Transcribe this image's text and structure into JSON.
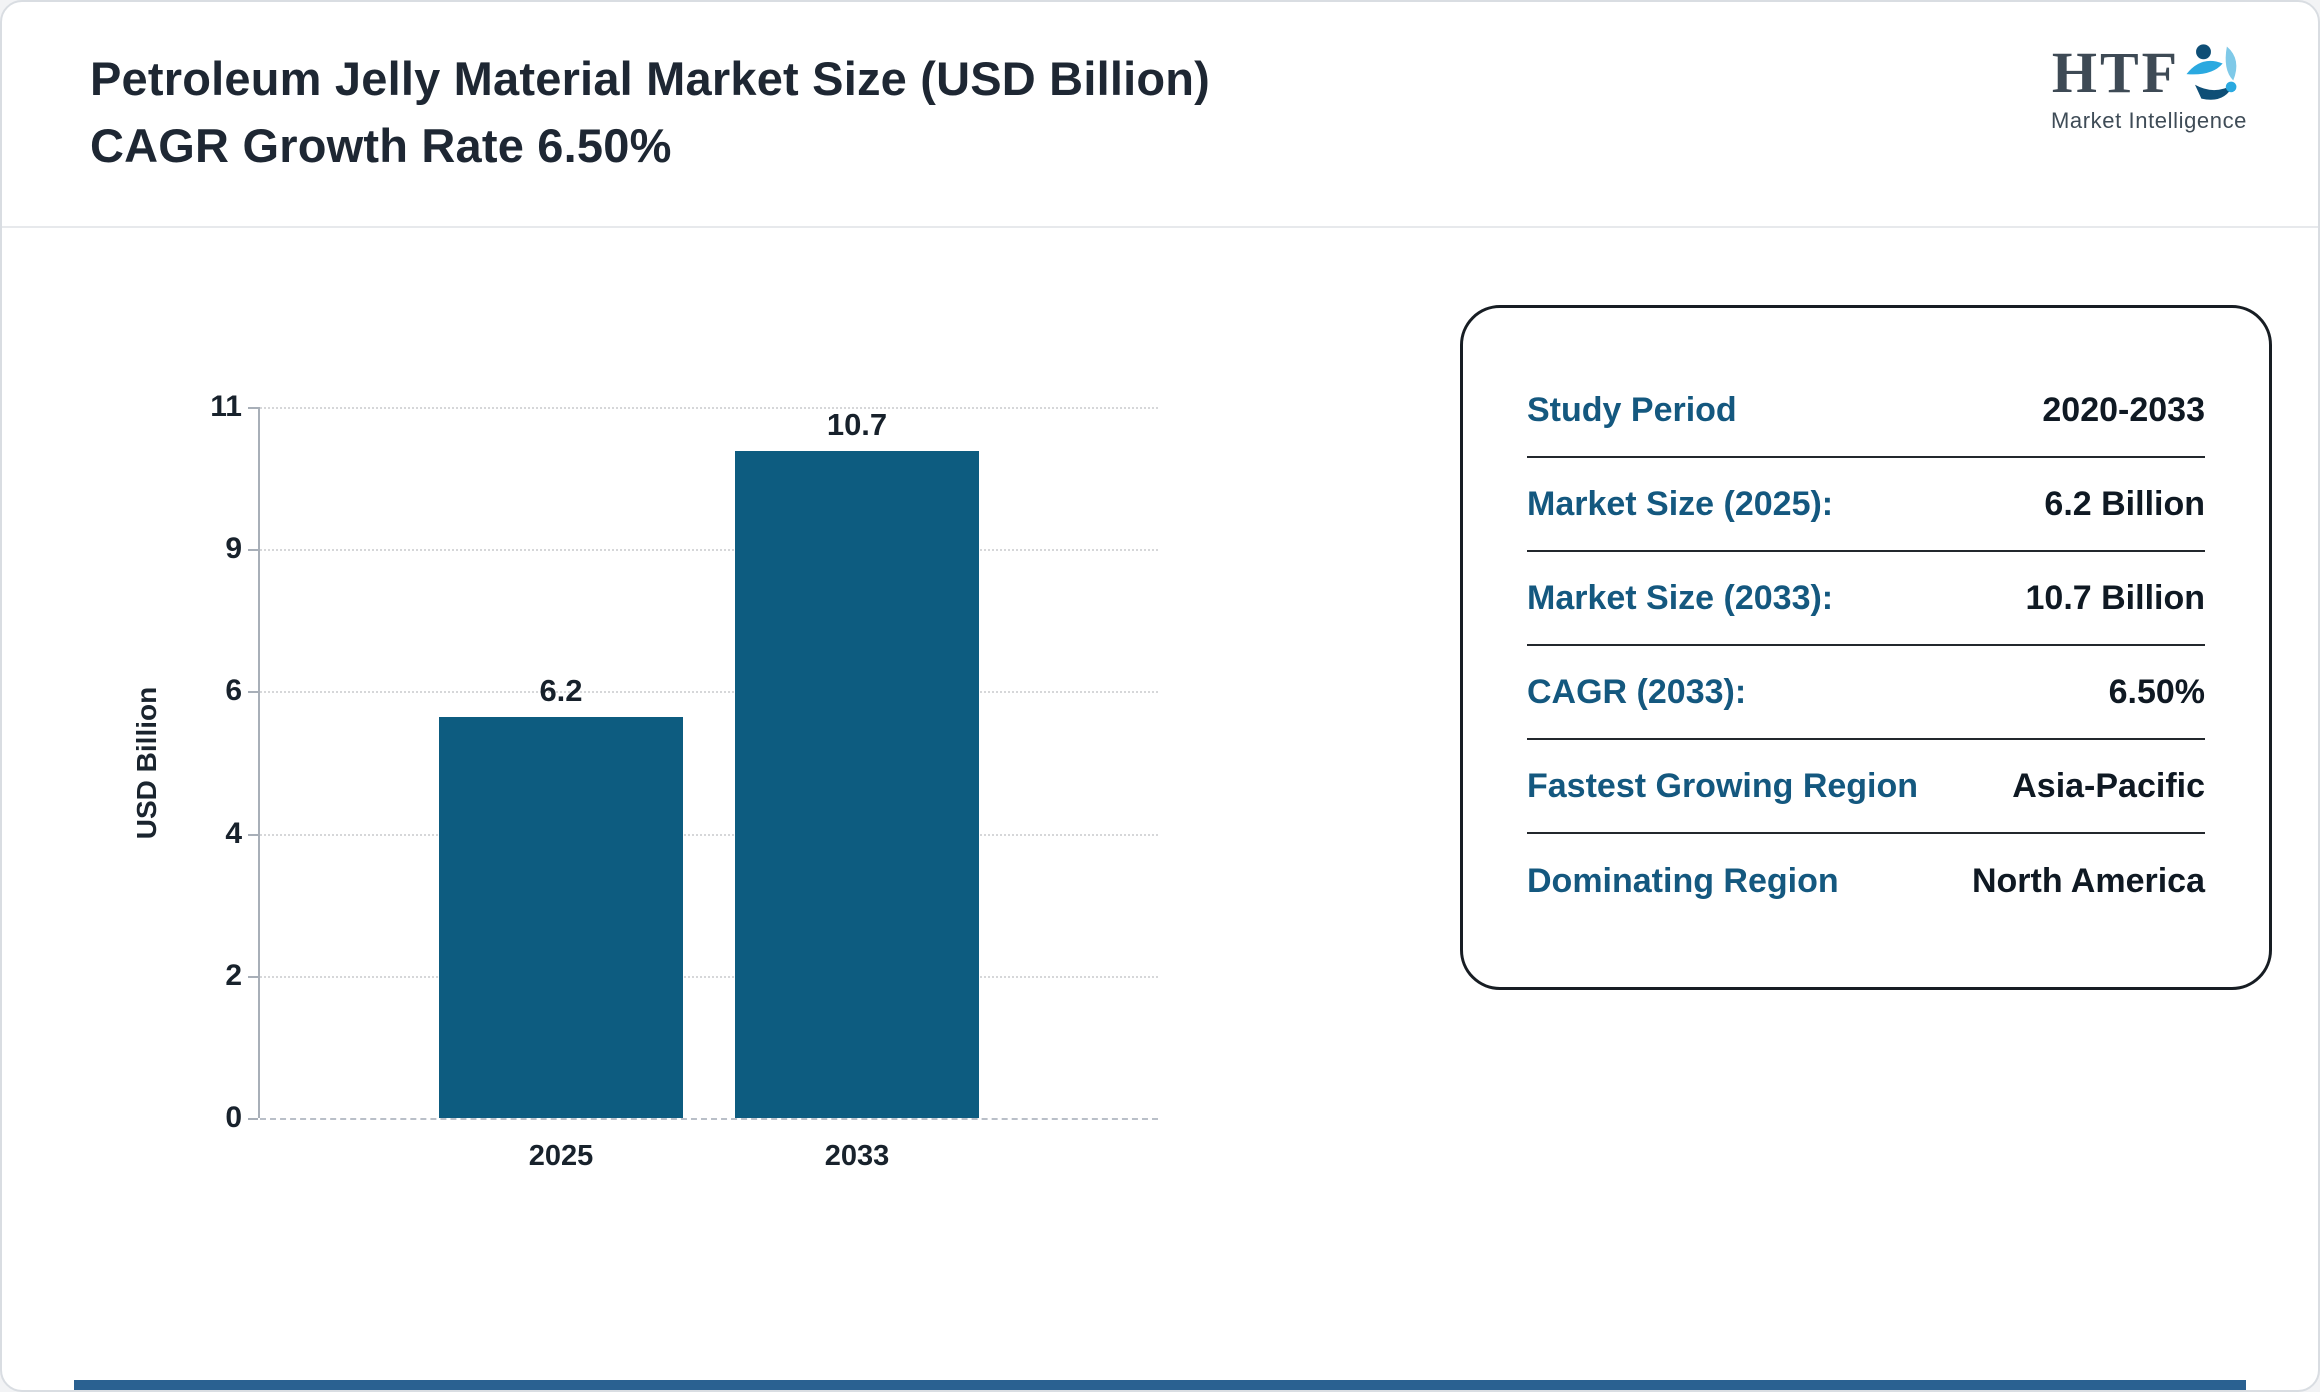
{
  "header": {
    "title": "Petroleum Jelly Material Market Size (USD Billion) CAGR Growth Rate 6.50%"
  },
  "logo": {
    "acronym": "HTF",
    "tagline": "Market Intelligence"
  },
  "chart_data": {
    "type": "bar",
    "title": "Petroleum Jelly Material Market Size (USD Billion) CAGR Growth Rate 6.50%",
    "categories": [
      "2025",
      "2033"
    ],
    "values": [
      6.2,
      10.7
    ],
    "value_labels": [
      "6.2",
      "10.7"
    ],
    "xlabel": "",
    "ylabel": "USD Billion",
    "yticks": [
      0,
      2,
      4,
      6,
      9,
      11
    ],
    "ylim": [
      0,
      11
    ],
    "bar_color": "#0d5c80",
    "grid": "horizontal dotted gridlines, dashed baseline",
    "legend": "none"
  },
  "info_card": {
    "rows": [
      {
        "label": "Study Period",
        "value": "2020-2033"
      },
      {
        "label": "Market Size (2025):",
        "value": "6.2 Billion"
      },
      {
        "label": "Market Size (2033):",
        "value": "10.7 Billion"
      },
      {
        "label": "CAGR (2033):",
        "value": "6.50%"
      },
      {
        "label": "Fastest Growing Region",
        "value": "Asia-Pacific"
      },
      {
        "label": "Dominating Region",
        "value": "North America"
      }
    ]
  },
  "colors": {
    "accent": "#0d5c80",
    "card_label": "#14587f",
    "title_text": "#1e2733",
    "footer_bar": "#2a6191"
  }
}
